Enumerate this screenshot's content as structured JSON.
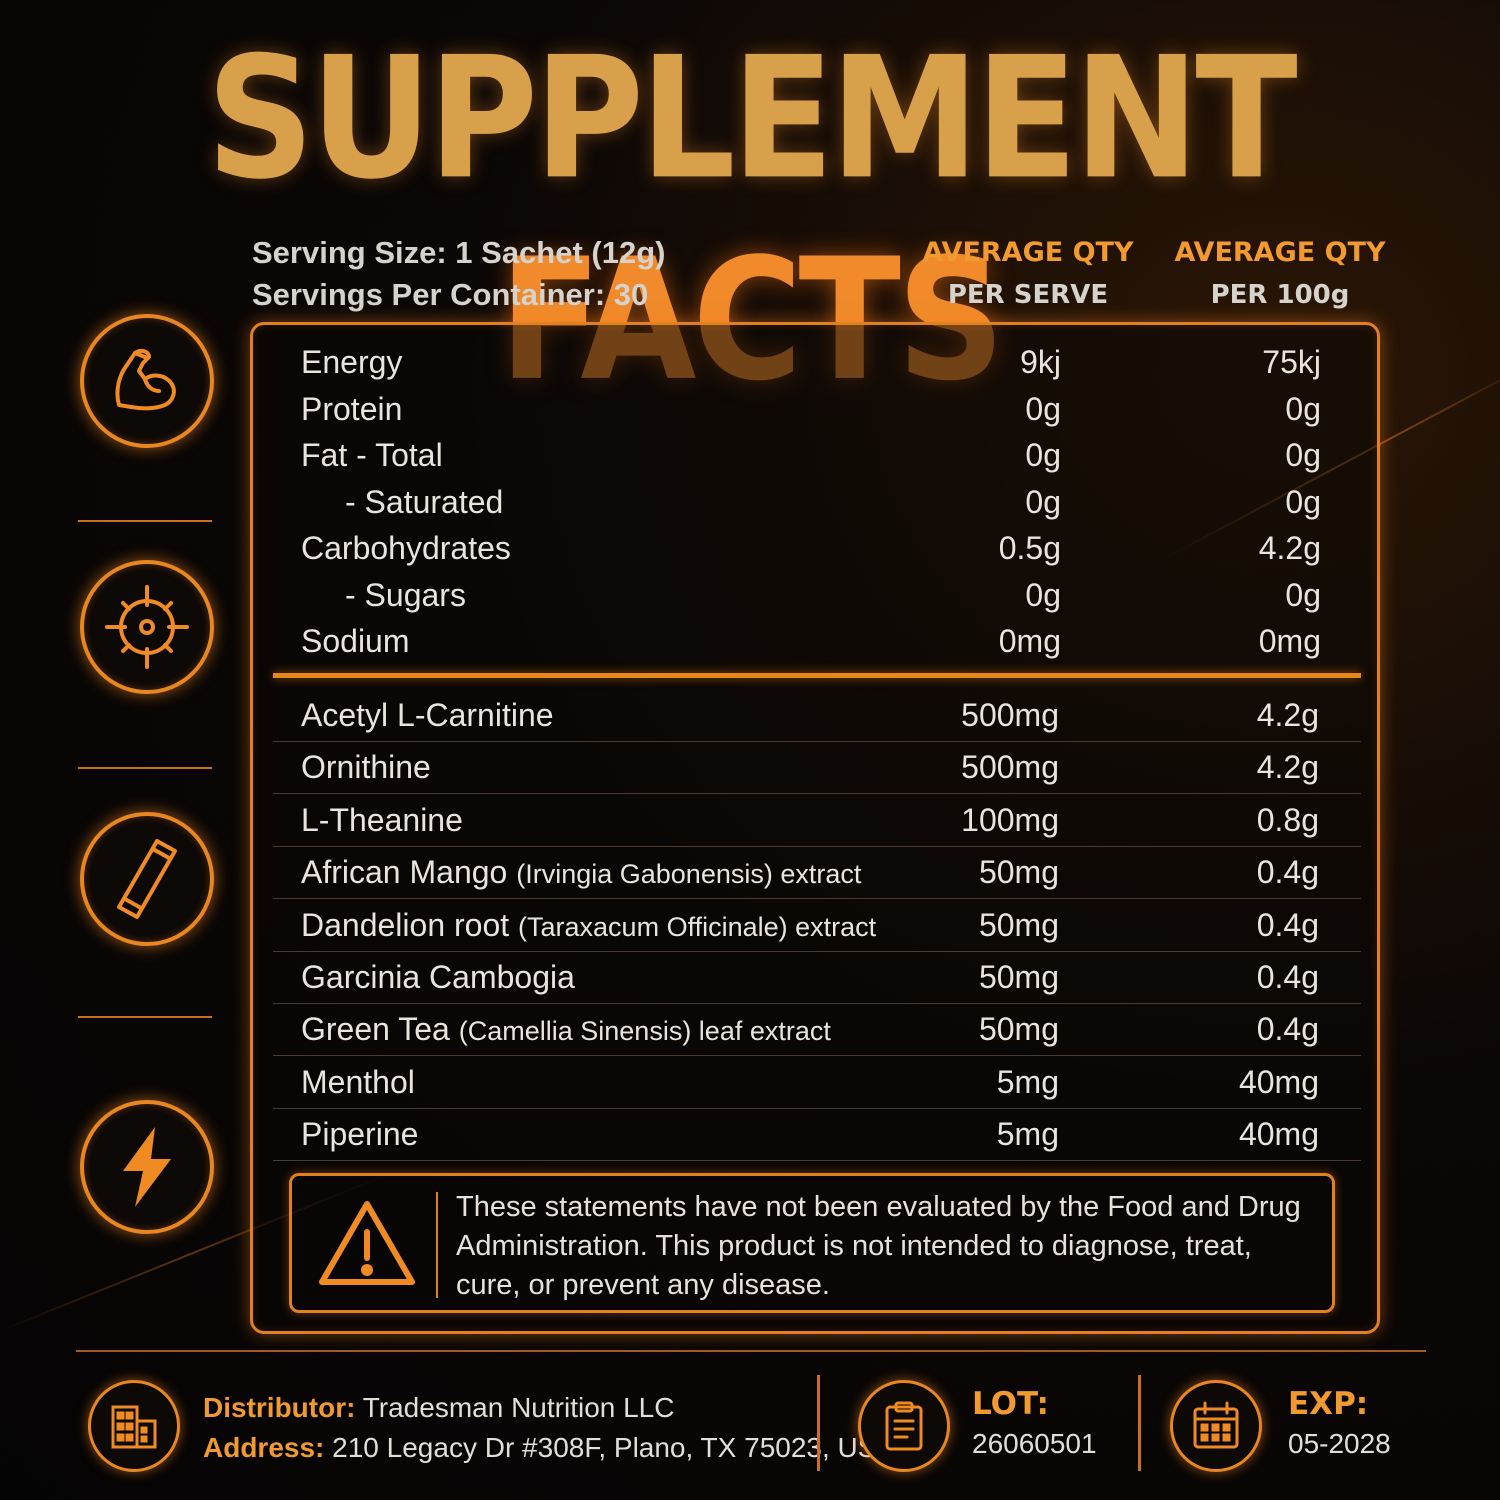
{
  "title": {
    "word1": "SUPPLEMENT",
    "word2": "FACTS"
  },
  "serving": {
    "size": "Serving Size: 1 Sachet (12g)",
    "per_container": "Servings  Per Container: 30"
  },
  "columns": [
    {
      "line1": "AVERAGE QTY",
      "line2": "PER SERVE"
    },
    {
      "line1": "AVERAGE QTY",
      "line2": "PER 100g"
    }
  ],
  "nutrition": [
    {
      "name": "Energy",
      "per_serve": "9kj",
      "per_100g": "75kj",
      "indent": false
    },
    {
      "name": "Protein",
      "per_serve": "0g",
      "per_100g": "0g",
      "indent": false
    },
    {
      "name": "Fat - Total",
      "per_serve": "0g",
      "per_100g": "0g",
      "indent": false
    },
    {
      "name": "- Saturated",
      "per_serve": "0g",
      "per_100g": "0g",
      "indent": true
    },
    {
      "name": "Carbohydrates",
      "per_serve": "0.5g",
      "per_100g": "4.2g",
      "indent": false
    },
    {
      "name": "- Sugars",
      "per_serve": "0g",
      "per_100g": "0g",
      "indent": true
    },
    {
      "name": "Sodium",
      "per_serve": "0mg",
      "per_100g": "0mg",
      "indent": false
    }
  ],
  "ingredients": [
    {
      "name": "Acetyl L-Carnitine",
      "sci": "",
      "suffix": "",
      "per_serve": "500mg",
      "per_100g": "4.2g"
    },
    {
      "name": "Ornithine",
      "sci": "",
      "suffix": "",
      "per_serve": "500mg",
      "per_100g": "4.2g"
    },
    {
      "name": "L-Theanine",
      "sci": "",
      "suffix": "",
      "per_serve": "100mg",
      "per_100g": "0.8g"
    },
    {
      "name": "African Mango",
      "sci": "(Irvingia Gabonensis) extract",
      "suffix": "",
      "per_serve": "50mg",
      "per_100g": "0.4g"
    },
    {
      "name": "Dandelion root",
      "sci": "(Taraxacum Officinale) extract",
      "suffix": "",
      "per_serve": "50mg",
      "per_100g": "0.4g"
    },
    {
      "name": "Garcinia Cambogia",
      "sci": "",
      "suffix": "",
      "per_serve": "50mg",
      "per_100g": "0.4g"
    },
    {
      "name": "Green Tea",
      "sci": "(Camellia Sinensis) leaf extract",
      "suffix": "",
      "per_serve": "50mg",
      "per_100g": "0.4g"
    },
    {
      "name": "Menthol",
      "sci": "",
      "suffix": "",
      "per_serve": "5mg",
      "per_100g": "40mg"
    },
    {
      "name": "Piperine",
      "sci": "",
      "suffix": "",
      "per_serve": "5mg",
      "per_100g": "40mg"
    }
  ],
  "warning": "These statements have not been evaluated by the Food and Drug Administration. This product is not intended to diagnose, treat, cure, or prevent any disease.",
  "side_icons": [
    "muscle-arm-icon",
    "target-crosshair-icon",
    "sachet-icon",
    "lightning-bolt-icon"
  ],
  "footer": {
    "distributor_label": "Distributor:",
    "distributor_value": "Tradesman Nutrition LLC",
    "address_label": "Address:",
    "address_value": "210 Legacy Dr #308F, Plano, TX 75023, US",
    "lot_label": "LOT:",
    "lot_value": "26060501",
    "exp_label": "EXP:",
    "exp_value": "05-2028"
  },
  "colors": {
    "accent": "#e8861f",
    "title_gold": "#d8a04a",
    "title_orange": "#f08a2a",
    "background": "#080605"
  }
}
